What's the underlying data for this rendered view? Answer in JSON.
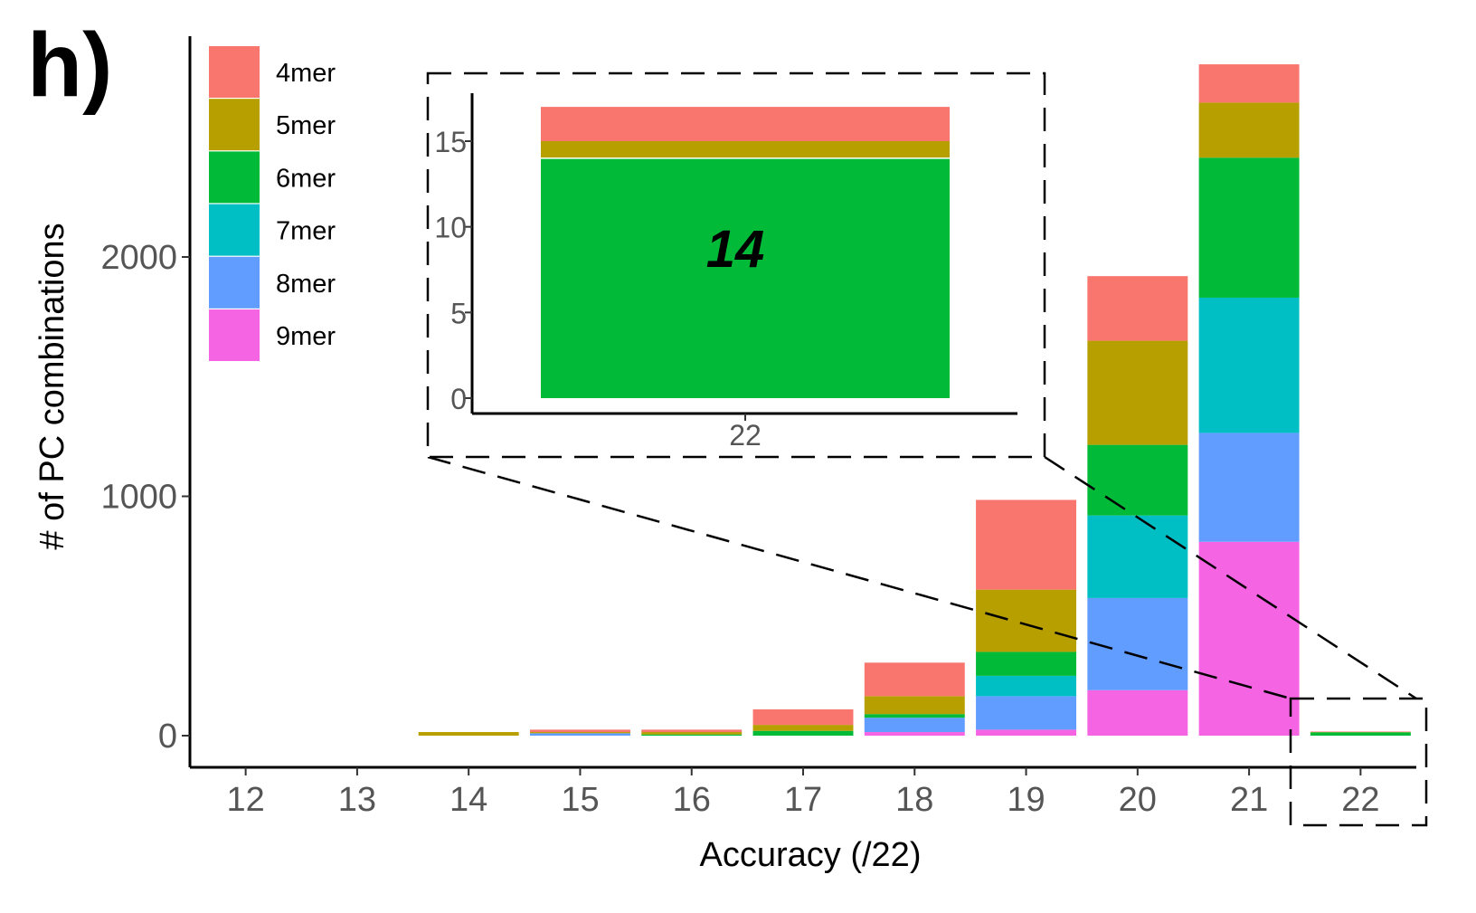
{
  "panel_label": "h)",
  "colors": {
    "4mer": "#F8766D",
    "5mer": "#B79F00",
    "6mer": "#00BA38",
    "7mer": "#00BFC4",
    "8mer": "#619CFF",
    "9mer": "#F564E3"
  },
  "chart_data": {
    "type": "bar",
    "stacked": true,
    "xlabel": "Accuracy (/22)",
    "ylabel": "# of PC combinations",
    "categories": [
      "12",
      "13",
      "14",
      "15",
      "16",
      "17",
      "18",
      "19",
      "20",
      "21",
      "22"
    ],
    "yticks": [
      0,
      1000,
      2000
    ],
    "ylim": [
      -140,
      2900
    ],
    "legend_position": "top-left",
    "series": [
      {
        "name": "9mer",
        "values": [
          0,
          0,
          0,
          0,
          0,
          0,
          15,
          25,
          190,
          810,
          0
        ]
      },
      {
        "name": "8mer",
        "values": [
          0,
          0,
          0,
          10,
          0,
          0,
          60,
          140,
          385,
          455,
          0
        ]
      },
      {
        "name": "7mer",
        "values": [
          0,
          0,
          0,
          0,
          0,
          0,
          0,
          85,
          345,
          565,
          0
        ]
      },
      {
        "name": "6mer",
        "values": [
          0,
          0,
          0,
          0,
          5,
          20,
          15,
          100,
          295,
          585,
          14
        ]
      },
      {
        "name": "5mer",
        "values": [
          0,
          0,
          15,
          5,
          10,
          25,
          75,
          260,
          435,
          230,
          1
        ]
      },
      {
        "name": "4mer",
        "values": [
          0,
          0,
          0,
          10,
          10,
          65,
          140,
          375,
          270,
          160,
          2
        ]
      }
    ],
    "inset": {
      "category": "22",
      "xtick": "22",
      "yticks": [
        0,
        5,
        10,
        15
      ],
      "ylim": [
        -0.8,
        18
      ],
      "values": {
        "6mer": 14,
        "5mer": 1,
        "4mer": 2
      },
      "annotation": "14"
    }
  }
}
